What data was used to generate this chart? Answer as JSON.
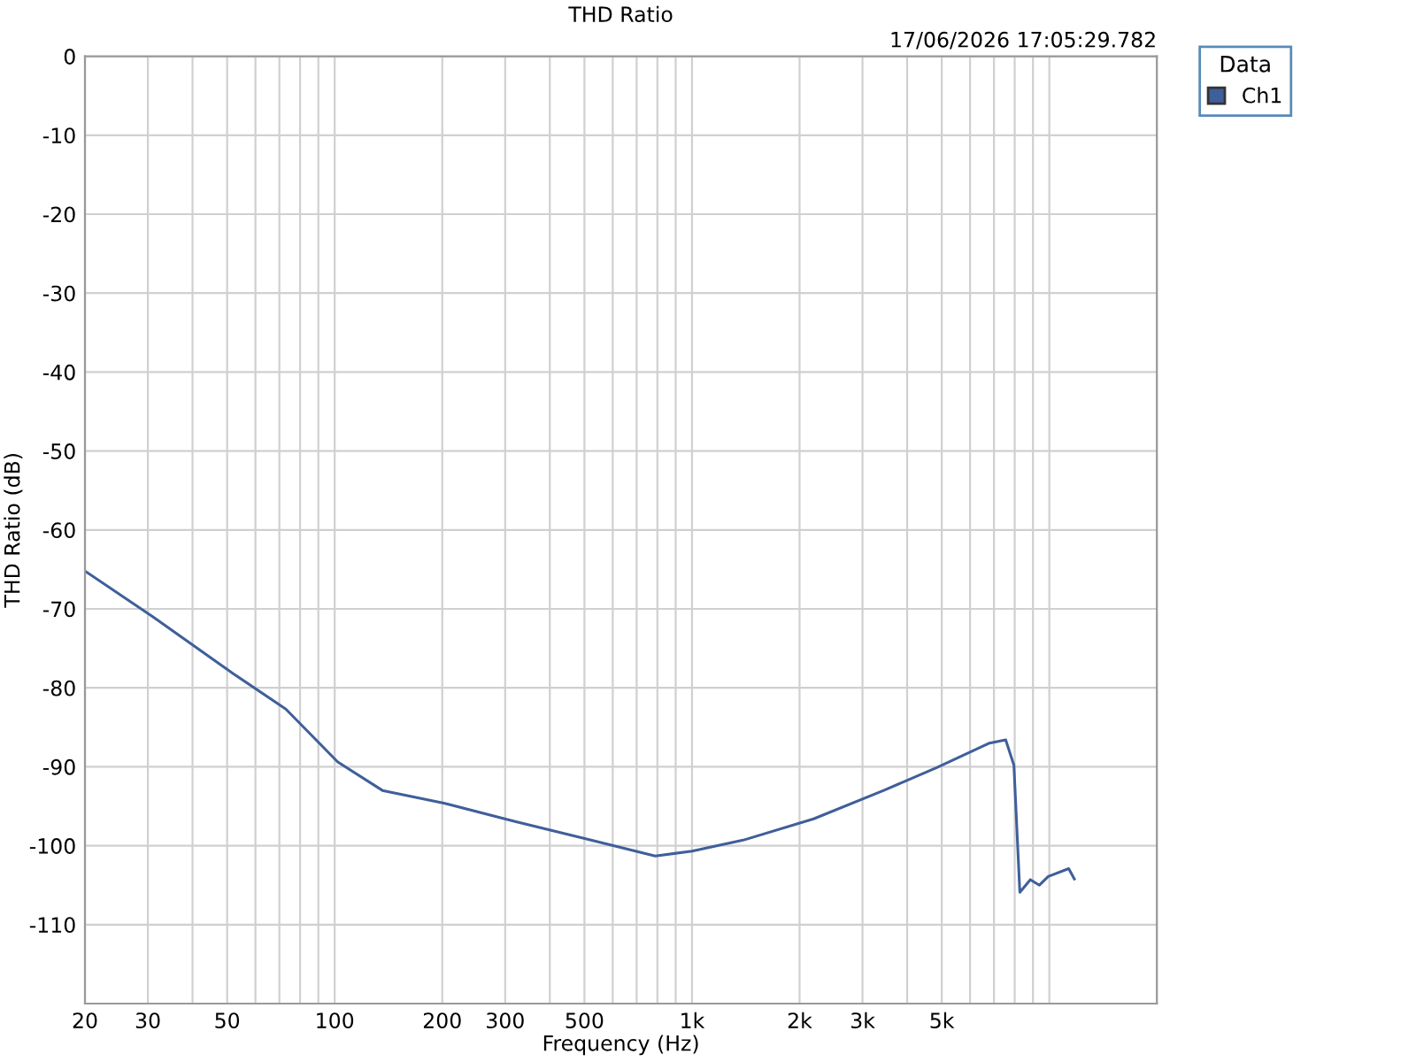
{
  "chart_data": {
    "type": "line",
    "title": "THD Ratio",
    "xlabel": "Frequency (Hz)",
    "ylabel": "THD Ratio (dB)",
    "legend_title": "Data",
    "annotations": [
      "17/06/2026 17:05:29.782"
    ],
    "log": "x",
    "grid": true,
    "legend": "top right",
    "marker": "none",
    "line_style": "solid",
    "xlim": [
      20,
      20000
    ],
    "ylim": [
      -120,
      0
    ],
    "xticks": [
      20,
      30,
      {
        "value": 40,
        "label": null
      },
      50,
      {
        "value": 60,
        "label": null
      },
      {
        "value": 70,
        "label": null
      },
      {
        "value": 80,
        "label": null
      },
      {
        "value": 90,
        "label": null
      },
      100,
      200,
      300,
      {
        "value": 400,
        "label": null
      },
      500,
      {
        "value": 600,
        "label": null
      },
      {
        "value": 700,
        "label": null
      },
      {
        "value": 800,
        "label": null
      },
      {
        "value": 900,
        "label": null
      },
      {
        "value": 1000,
        "label": "1k"
      },
      {
        "value": 2000,
        "label": "2k"
      },
      {
        "value": 3000,
        "label": "3k"
      },
      {
        "value": 4000,
        "label": null
      },
      {
        "value": 5000,
        "label": "5k"
      },
      {
        "value": 6000,
        "label": null
      },
      {
        "value": 7000,
        "label": null
      },
      {
        "value": 8000,
        "label": null
      },
      {
        "value": 9000,
        "label": null
      },
      {
        "value": 10000,
        "label": null
      }
    ],
    "yticks": [
      0,
      -10,
      -20,
      -30,
      -40,
      -50,
      -60,
      -70,
      -80,
      -90,
      -100,
      -110
    ],
    "series": [
      {
        "name": "Ch1",
        "color": "#3f5f9a",
        "x": [
          20,
          31,
          52,
          73,
          102,
          136,
          202,
          318,
          501,
          789,
          1000,
          1390,
          2190,
          3440,
          4840,
          6800,
          7550,
          7960,
          8270,
          8850,
          9380,
          9930,
          11330,
          11750
        ],
        "values": [
          -65.2,
          -71.0,
          -78.2,
          -82.7,
          -89.4,
          -93.0,
          -94.6,
          -96.9,
          -99.1,
          -101.3,
          -100.7,
          -99.3,
          -96.6,
          -93.0,
          -90.1,
          -87.0,
          -86.6,
          -89.8,
          -105.9,
          -104.3,
          -105.0,
          -103.9,
          -102.9,
          -104.2
        ]
      }
    ]
  }
}
